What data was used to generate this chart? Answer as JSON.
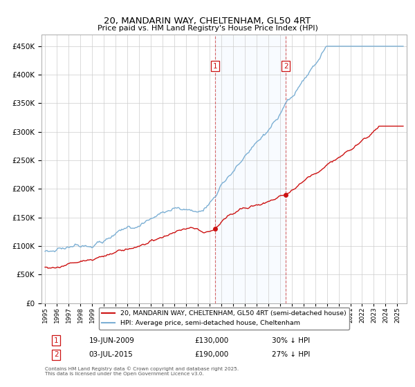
{
  "title": "20, MANDARIN WAY, CHELTENHAM, GL50 4RT",
  "subtitle": "Price paid vs. HM Land Registry's House Price Index (HPI)",
  "ylim": [
    0,
    470000
  ],
  "yticks": [
    0,
    50000,
    100000,
    150000,
    200000,
    250000,
    300000,
    350000,
    400000,
    450000
  ],
  "hpi_color": "#7bafd4",
  "price_color": "#cc1111",
  "sale1": {
    "date_num": 2009.47,
    "price": 130000,
    "label": "1",
    "date_str": "19-JUN-2009",
    "pct": "30% ↓ HPI"
  },
  "sale2": {
    "date_num": 2015.5,
    "price": 190000,
    "label": "2",
    "date_str": "03-JUL-2015",
    "pct": "27% ↓ HPI"
  },
  "legend_line1": "20, MANDARIN WAY, CHELTENHAM, GL50 4RT (semi-detached house)",
  "legend_line2": "HPI: Average price, semi-detached house, Cheltenham",
  "footnote": "Contains HM Land Registry data © Crown copyright and database right 2025.\nThis data is licensed under the Open Government Licence v3.0.",
  "background_color": "#ffffff",
  "shaded_region_color": "#ddeeff",
  "xmin": 1994.7,
  "xmax": 2025.8
}
